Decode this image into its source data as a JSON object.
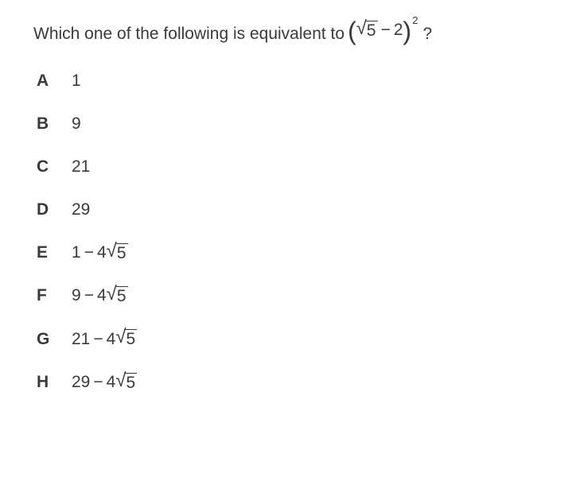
{
  "text_color": "#3a3a3a",
  "background_color": "#ffffff",
  "font_family": "Arial",
  "question_fontsize": 21,
  "option_fontsize": 21,
  "question": {
    "prefix": "Which one of the following is equivalent to",
    "expr": {
      "lparen": "(",
      "sqrt_radicand": "5",
      "op": "−",
      "term": "2",
      "rparen": ")",
      "exponent": "2"
    },
    "suffix": "?"
  },
  "options": [
    {
      "label": "A",
      "kind": "plain",
      "text": "1"
    },
    {
      "label": "B",
      "kind": "plain",
      "text": "9"
    },
    {
      "label": "C",
      "kind": "plain",
      "text": "21"
    },
    {
      "label": "D",
      "kind": "plain",
      "text": "29"
    },
    {
      "label": "E",
      "kind": "expr",
      "lead": "1",
      "op": "−",
      "coeff": "4",
      "radicand": "5"
    },
    {
      "label": "F",
      "kind": "expr",
      "lead": "9",
      "op": "−",
      "coeff": "4",
      "radicand": "5"
    },
    {
      "label": "G",
      "kind": "expr",
      "lead": "21",
      "op": "−",
      "coeff": "4",
      "radicand": "5"
    },
    {
      "label": "H",
      "kind": "expr",
      "lead": "29",
      "op": "−",
      "coeff": "4",
      "radicand": "5"
    }
  ]
}
